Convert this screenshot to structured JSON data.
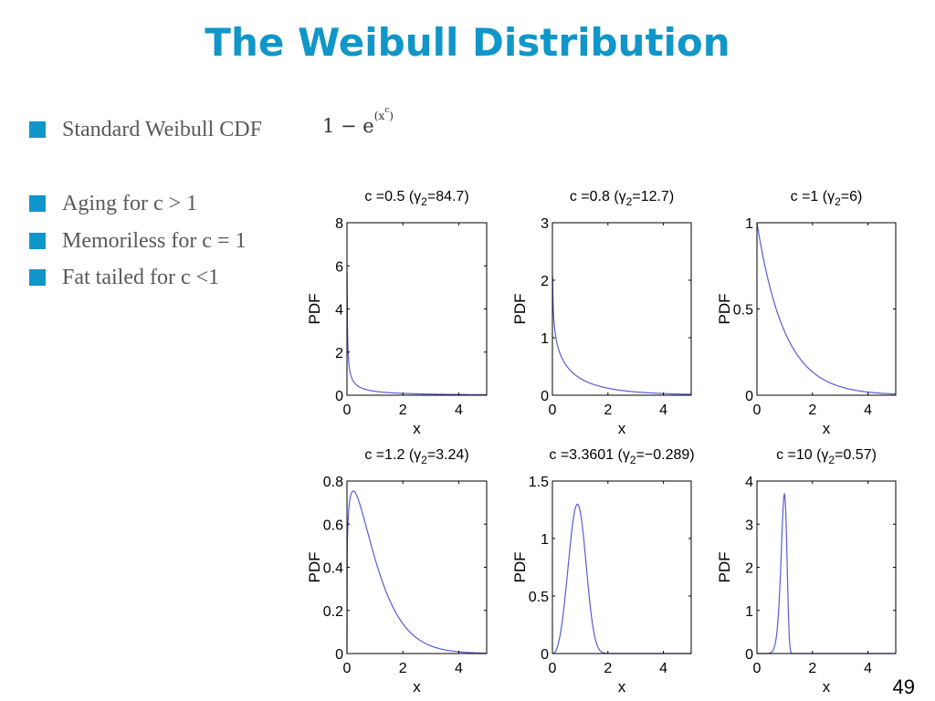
{
  "slide": {
    "title": "The Weibull Distribution",
    "title_color": "#1096c8",
    "accent_color": "#1096c8",
    "page_number": "49",
    "bullets": [
      "Standard Weibull CDF",
      "Aging for c > 1",
      "Memoriless for c = 1",
      "Fat tailed for c <1"
    ],
    "formula": {
      "lead": "1 − e",
      "paren_open": "(",
      "base": "x",
      "exp": "c",
      "paren_close": ")"
    }
  },
  "chart_data": [
    {
      "type": "line",
      "title_prefix": "c =0.5 (",
      "title_gamma": "γ",
      "title_sub": "2",
      "title_suffix": "=84.7)",
      "xlabel": "x",
      "ylabel": "PDF",
      "xlim": [
        0,
        5
      ],
      "ylim": [
        0,
        8
      ],
      "yticks": [
        0,
        2,
        4,
        6,
        8
      ],
      "ytick_labels": [
        "0",
        "2",
        "4",
        "6",
        "8"
      ],
      "xticks": [
        0,
        2,
        4
      ],
      "c": 0.5,
      "x_start": 0.0065,
      "color": "#5b5bd6"
    },
    {
      "type": "line",
      "title_prefix": "c =0.8 (",
      "title_gamma": "γ",
      "title_sub": "2",
      "title_suffix": "=12.7)",
      "xlabel": "x",
      "ylabel": "PDF",
      "xlim": [
        0,
        5
      ],
      "ylim": [
        0,
        3
      ],
      "yticks": [
        0,
        1,
        2,
        3
      ],
      "ytick_labels": [
        "0",
        "1",
        "2",
        "3"
      ],
      "xticks": [
        0,
        2,
        4
      ],
      "c": 0.8,
      "x_start": 0.008,
      "color": "#5b5bd6"
    },
    {
      "type": "line",
      "title_prefix": "c =1 (",
      "title_gamma": "γ",
      "title_sub": "2",
      "title_suffix": "=6)",
      "xlabel": "x",
      "ylabel": "PDF",
      "xlim": [
        0,
        5
      ],
      "ylim": [
        0,
        1
      ],
      "yticks": [
        0,
        0.5,
        1
      ],
      "ytick_labels": [
        "0",
        "0.5",
        "1"
      ],
      "xticks": [
        0,
        2,
        4
      ],
      "c": 1,
      "x_start": 0,
      "color": "#5b5bd6"
    },
    {
      "type": "line",
      "title_prefix": "c =1.2 (",
      "title_gamma": "γ",
      "title_sub": "2",
      "title_suffix": "=3.24)",
      "xlabel": "x",
      "ylabel": "PDF",
      "xlim": [
        0,
        5
      ],
      "ylim": [
        0,
        0.8
      ],
      "yticks": [
        0,
        0.2,
        0.4,
        0.6,
        0.8
      ],
      "ytick_labels": [
        "0",
        "0.2",
        "0.4",
        "0.6",
        "0.8"
      ],
      "xticks": [
        0,
        2,
        4
      ],
      "c": 1.2,
      "x_start": 0,
      "color": "#5b5bd6"
    },
    {
      "type": "line",
      "title_prefix": "c =3.3601 (",
      "title_gamma": "γ",
      "title_sub": "2",
      "title_suffix": "=−0.289)",
      "xlabel": "x",
      "ylabel": "PDF",
      "xlim": [
        0,
        5
      ],
      "ylim": [
        0,
        1.5
      ],
      "yticks": [
        0,
        0.5,
        1,
        1.5
      ],
      "ytick_labels": [
        "0",
        "0.5",
        "1",
        "1.5"
      ],
      "xticks": [
        0,
        2,
        4
      ],
      "c": 3.3601,
      "x_start": 0,
      "color": "#5b5bd6"
    },
    {
      "type": "line",
      "title_prefix": "c =10 (",
      "title_gamma": "γ",
      "title_sub": "2",
      "title_suffix": "=0.57)",
      "xlabel": "x",
      "ylabel": "PDF",
      "xlim": [
        0,
        5
      ],
      "ylim": [
        0,
        4
      ],
      "yticks": [
        0,
        1,
        2,
        3,
        4
      ],
      "ytick_labels": [
        "0",
        "1",
        "2",
        "3",
        "4"
      ],
      "xticks": [
        0,
        2,
        4
      ],
      "c": 10,
      "x_start": 0,
      "color": "#5b5bd6"
    }
  ]
}
